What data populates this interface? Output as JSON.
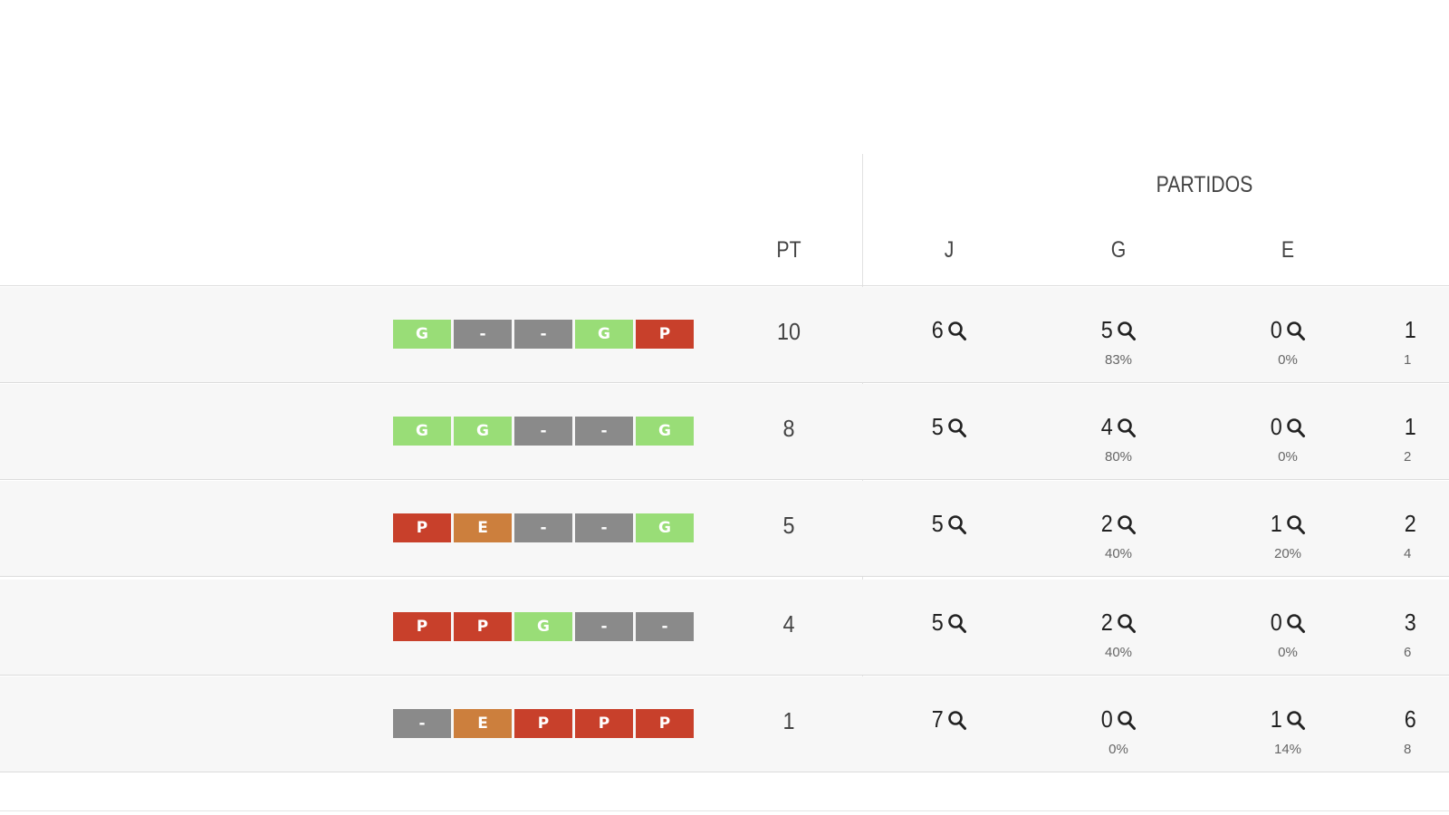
{
  "table": {
    "group_title": "PARTIDOS",
    "headers": {
      "pt": "PT",
      "j": "J",
      "g": "G",
      "e": "E"
    },
    "rows": [
      {
        "form": [
          "G",
          "-",
          "-",
          "G",
          "P"
        ],
        "form_types": [
          "G",
          "N",
          "N",
          "G",
          "P"
        ],
        "pt": "10",
        "j": "6",
        "g": "5",
        "g_pct": "83%",
        "e": "0",
        "e_pct": "0%",
        "p": "1",
        "p_pct": "1"
      },
      {
        "form": [
          "G",
          "G",
          "-",
          "-",
          "G"
        ],
        "form_types": [
          "G",
          "G",
          "N",
          "N",
          "G"
        ],
        "pt": "8",
        "j": "5",
        "g": "4",
        "g_pct": "80%",
        "e": "0",
        "e_pct": "0%",
        "p": "1",
        "p_pct": "2"
      },
      {
        "form": [
          "P",
          "E",
          "-",
          "-",
          "G"
        ],
        "form_types": [
          "P",
          "E",
          "N",
          "N",
          "G"
        ],
        "pt": "5",
        "j": "5",
        "g": "2",
        "g_pct": "40%",
        "e": "1",
        "e_pct": "20%",
        "p": "2",
        "p_pct": "4"
      },
      {
        "form": [
          "P",
          "P",
          "G",
          "-",
          "-"
        ],
        "form_types": [
          "P",
          "P",
          "G",
          "N",
          "N"
        ],
        "pt": "4",
        "j": "5",
        "g": "2",
        "g_pct": "40%",
        "e": "0",
        "e_pct": "0%",
        "p": "3",
        "p_pct": "6"
      },
      {
        "form": [
          "-",
          "E",
          "P",
          "P",
          "P"
        ],
        "form_types": [
          "N",
          "E",
          "P",
          "P",
          "P"
        ],
        "pt": "1",
        "j": "7",
        "g": "0",
        "g_pct": "0%",
        "e": "1",
        "e_pct": "14%",
        "p": "6",
        "p_pct": "8"
      }
    ]
  },
  "colors": {
    "win": "#99dd77",
    "loss": "#c8402b",
    "draw": "#cc7f3d",
    "none": "#8a8a8a"
  },
  "icons": {
    "detail": "search-icon"
  }
}
